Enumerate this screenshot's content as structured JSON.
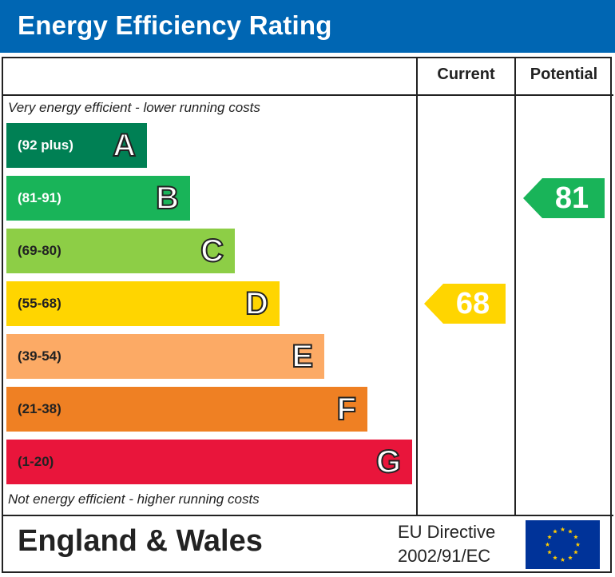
{
  "header": {
    "title": "Energy Efficiency Rating"
  },
  "columns": {
    "current": "Current",
    "potential": "Potential"
  },
  "notes": {
    "top": "Very energy efficient - lower running costs",
    "bottom": "Not energy efficient - higher running costs"
  },
  "footer": {
    "region": "England & Wales",
    "directive_line1": "EU Directive",
    "directive_line2": "2002/91/EC",
    "flag_icon": "eu-flag-icon"
  },
  "chart_data": {
    "type": "bar",
    "title": "Energy Efficiency Rating",
    "categories": [
      "A",
      "B",
      "C",
      "D",
      "E",
      "F",
      "G"
    ],
    "bands": [
      {
        "letter": "A",
        "range": "(92 plus)",
        "color": "#008054"
      },
      {
        "letter": "B",
        "range": "(81-91)",
        "color": "#19b459"
      },
      {
        "letter": "C",
        "range": "(69-80)",
        "color": "#8dce46"
      },
      {
        "letter": "D",
        "range": "(55-68)",
        "color": "#ffd500"
      },
      {
        "letter": "E",
        "range": "(39-54)",
        "color": "#fcaa65"
      },
      {
        "letter": "F",
        "range": "(21-38)",
        "color": "#ef8023"
      },
      {
        "letter": "G",
        "range": "(1-20)",
        "color": "#e9153b"
      }
    ],
    "current": {
      "value": 68,
      "band": "D",
      "color": "#ffd500"
    },
    "potential": {
      "value": 81,
      "band": "B",
      "color": "#19b459"
    }
  }
}
